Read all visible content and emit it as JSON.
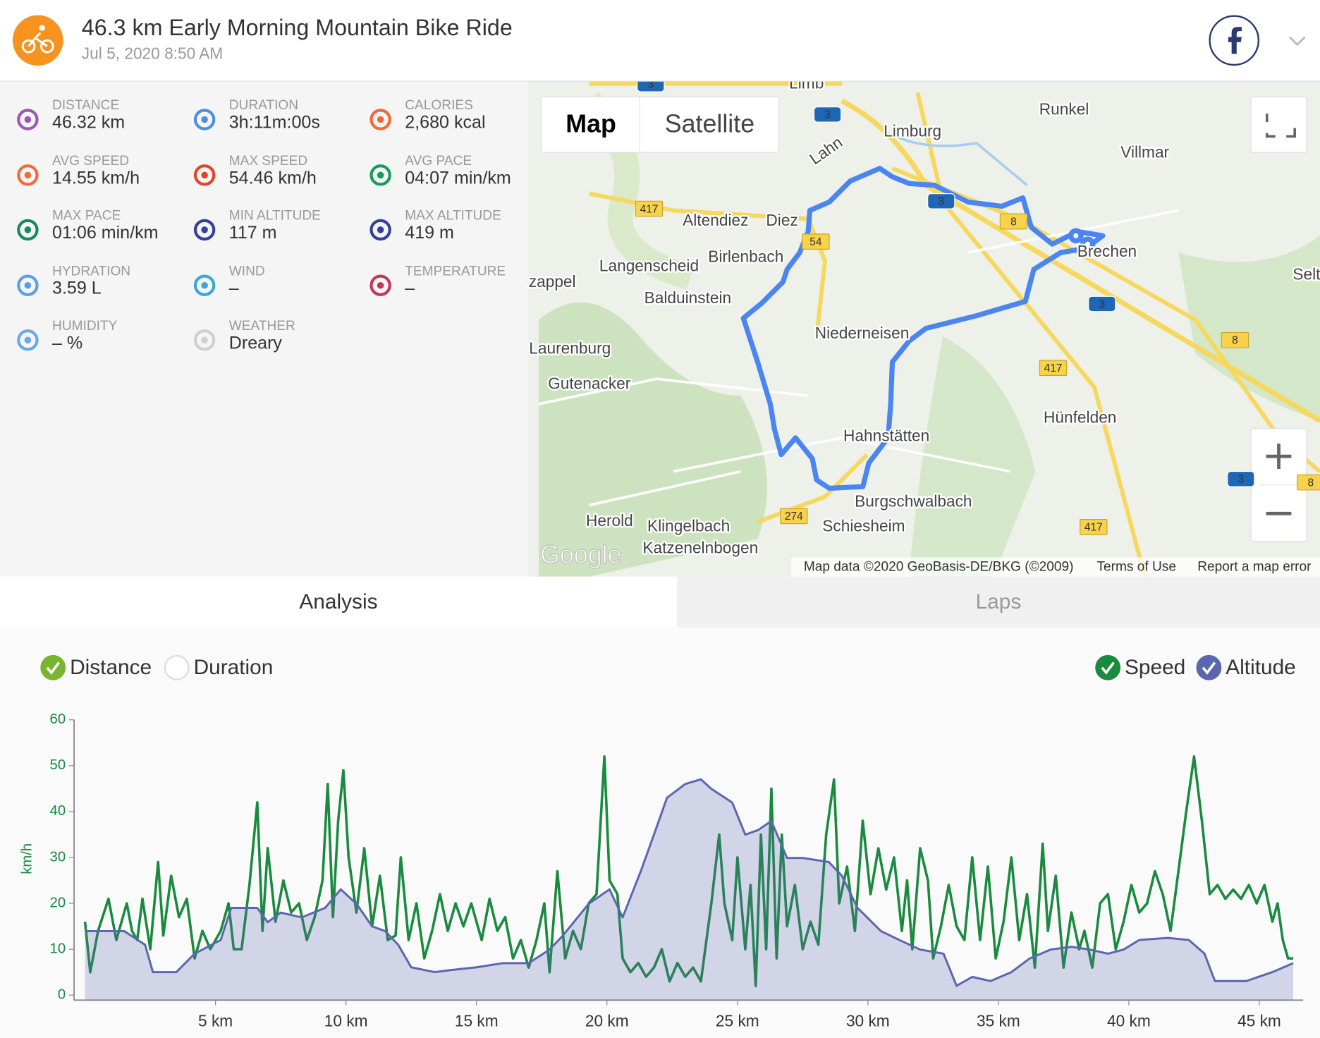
{
  "header": {
    "title": "46.3 km Early Morning Mountain Bike Ride",
    "date": "Jul 5, 2020 8:50 AM"
  },
  "stats": [
    {
      "label": "Distance",
      "value": "46.32 km"
    },
    {
      "label": "Duration",
      "value": "3h:11m:00s"
    },
    {
      "label": "Calories",
      "value": "2,680 kcal"
    },
    {
      "label": "Avg Speed",
      "value": "14.55 km/h"
    },
    {
      "label": "Max Speed",
      "value": "54.46 km/h"
    },
    {
      "label": "Avg Pace",
      "value": "04:07 min/km"
    },
    {
      "label": "Max Pace",
      "value": "01:06 min/km"
    },
    {
      "label": "Min Altitude",
      "value": "117 m"
    },
    {
      "label": "Max Altitude",
      "value": "419 m"
    },
    {
      "label": "Hydration",
      "value": "3.59 L"
    },
    {
      "label": "Wind",
      "value": "–"
    },
    {
      "label": "Temperature",
      "value": "–"
    },
    {
      "label": "Humidity",
      "value": "– %"
    },
    {
      "label": "Weather",
      "value": "Dreary"
    }
  ],
  "map": {
    "buttons": [
      "Map",
      "Satellite"
    ],
    "labels": [
      "Runkel",
      "Limburg",
      "Villmar",
      "Altendiez",
      "Diez",
      "Langenscheid",
      "Birlenbach",
      "Brechen",
      "Selt",
      "zappel",
      "Balduinstein",
      "Niederneisen",
      "Laurenburg",
      "Gutenacker",
      "Hünfelden",
      "Hahnstätten",
      "Burgschwalbach",
      "Herold",
      "Klingelbach",
      "Schiesheim",
      "Katzenelnbogen",
      "Lahn",
      "Limb"
    ],
    "road_labels": [
      "3",
      "3",
      "3",
      "3",
      "3",
      "417",
      "417",
      "417",
      "54",
      "8",
      "8",
      "8",
      "274"
    ],
    "logo": "Google",
    "attribution": [
      "Map data ©2020 GeoBasis-DE/BKG (©2009)",
      "Terms of Use",
      "Report a map error"
    ]
  },
  "tabs": [
    "Analysis",
    "Laps"
  ],
  "x_modes": [
    "Distance",
    "Duration"
  ],
  "chart_data": {
    "type": "line",
    "y_label": "km/h",
    "xlim": [
      -0.42,
      46.68
    ],
    "ylim": [
      -1.1,
      60
    ],
    "y2lim": [
      96,
      506
    ],
    "xticks": [
      {
        "value": 5,
        "label": "5 km"
      },
      {
        "value": 10,
        "label": "10 km"
      },
      {
        "value": 15,
        "label": "15 km"
      },
      {
        "value": 20,
        "label": "20 km"
      },
      {
        "value": 25,
        "label": "25 km"
      },
      {
        "value": 30,
        "label": "30 km"
      },
      {
        "value": 35,
        "label": "35 km"
      },
      {
        "value": 40,
        "label": "40 km"
      },
      {
        "value": 45,
        "label": "45 km"
      }
    ],
    "yticks": [
      0,
      10,
      20,
      30,
      40,
      50,
      60
    ],
    "series": [
      {
        "name": "Speed",
        "color": "#1a8a3f",
        "x": [
          0,
          0.2,
          0.5,
          0.9,
          1.2,
          1.6,
          1.8,
          2.0,
          2.2,
          2.5,
          2.8,
          3.0,
          3.3,
          3.6,
          3.9,
          4.2,
          4.5,
          4.8,
          5.2,
          5.5,
          5.7,
          6.0,
          6.3,
          6.6,
          6.8,
          7.0,
          7.3,
          7.6,
          7.9,
          8.2,
          8.5,
          8.8,
          9.1,
          9.3,
          9.5,
          9.7,
          9.9,
          10.1,
          10.4,
          10.7,
          11.0,
          11.3,
          11.6,
          11.9,
          12.1,
          12.4,
          12.7,
          13.0,
          13.3,
          13.6,
          13.9,
          14.2,
          14.5,
          14.8,
          15.2,
          15.5,
          15.8,
          16.1,
          16.4,
          16.7,
          17.0,
          17.3,
          17.6,
          17.8,
          18.1,
          18.4,
          18.7,
          19.0,
          19.3,
          19.6,
          19.8,
          19.9,
          20.1,
          20.4,
          20.6,
          20.9,
          21.2,
          21.5,
          21.8,
          22.1,
          22.4,
          22.7,
          23.0,
          23.3,
          23.6,
          24.0,
          24.3,
          24.5,
          24.8,
          25.0,
          25.3,
          25.5,
          25.7,
          25.9,
          26.1,
          26.3,
          26.5,
          26.7,
          26.9,
          27.2,
          27.5,
          27.8,
          28.1,
          28.4,
          28.7,
          28.9,
          29.2,
          29.5,
          29.8,
          30.1,
          30.4,
          30.7,
          31.0,
          31.3,
          31.5,
          31.7,
          32.0,
          32.3,
          32.5,
          32.8,
          33.1,
          33.4,
          33.7,
          34.0,
          34.3,
          34.6,
          34.9,
          35.2,
          35.5,
          35.8,
          36.1,
          36.4,
          36.7,
          36.9,
          37.2,
          37.5,
          37.8,
          38.1,
          38.3,
          38.6,
          38.9,
          39.2,
          39.5,
          39.8,
          40.1,
          40.4,
          40.7,
          41.0,
          41.3,
          41.6,
          41.9,
          42.2,
          42.5,
          42.8,
          43.1,
          43.4,
          43.7,
          44.0,
          44.3,
          44.6,
          44.9,
          45.2,
          45.5,
          45.7,
          45.9,
          46.1,
          46.3
        ],
        "values": [
          16,
          5,
          14,
          21,
          12,
          20,
          14,
          12,
          21,
          10,
          29,
          13,
          26,
          17,
          21,
          8,
          14,
          10,
          14,
          20,
          10,
          10,
          24,
          42,
          14,
          32,
          16,
          25,
          18,
          20,
          12,
          17,
          25,
          46,
          17,
          38,
          49,
          30,
          18,
          32,
          15,
          26,
          12,
          13,
          30,
          12,
          20,
          8,
          14,
          22,
          14,
          20,
          15,
          20,
          12,
          21,
          14,
          17,
          8,
          12,
          6,
          12,
          20,
          5,
          27,
          8,
          14,
          10,
          20,
          22,
          42,
          52,
          25,
          22,
          8,
          5,
          7,
          4,
          6,
          10,
          3,
          7,
          4,
          6,
          3,
          20,
          35,
          20,
          12,
          30,
          10,
          24,
          2,
          35,
          10,
          45,
          8,
          35,
          15,
          24,
          10,
          16,
          11,
          35,
          47,
          20,
          28,
          14,
          38,
          22,
          32,
          23,
          30,
          14,
          25,
          10,
          32,
          25,
          8,
          15,
          24,
          15,
          12,
          30,
          12,
          28,
          8,
          16,
          30,
          12,
          22,
          6,
          33,
          14,
          26,
          6,
          18,
          10,
          14,
          6,
          20,
          22,
          10,
          16,
          24,
          18,
          20,
          27,
          22,
          14,
          27,
          40,
          52,
          38,
          22,
          24,
          21,
          23,
          21,
          24,
          20,
          24,
          16,
          20,
          12,
          8,
          8
        ]
      },
      {
        "name": "Altitude",
        "color": "#5a67b0",
        "axis": "y2",
        "area": true,
        "x": [
          0,
          1.5,
          2.3,
          2.6,
          3.5,
          4.2,
          5.2,
          5.6,
          6.6,
          7.0,
          7.5,
          8.3,
          9.2,
          9.8,
          10.4,
          11.0,
          11.5,
          12.0,
          12.5,
          13.4,
          14.0,
          15.0,
          16.0,
          17.0,
          17.8,
          18.3,
          19.3,
          20.1,
          20.6,
          21.3,
          21.8,
          22.3,
          23.0,
          23.6,
          24.0,
          24.8,
          25.3,
          25.8,
          26.3,
          26.9,
          27.5,
          28.5,
          29.0,
          29.6,
          30.5,
          31.2,
          32.0,
          32.9,
          33.4,
          34.0,
          34.7,
          35.5,
          36.2,
          37.0,
          37.8,
          38.5,
          39.2,
          39.8,
          40.4,
          41.5,
          42.3,
          42.9,
          43.3,
          44.5,
          45.5,
          46.3
        ],
        "values": [
          197,
          197,
          177,
          137,
          137,
          164,
          184,
          231,
          231,
          210,
          224,
          217,
          231,
          258,
          237,
          204,
          197,
          177,
          144,
          137,
          140,
          144,
          150,
          150,
          170,
          190,
          237,
          258,
          217,
          285,
          338,
          392,
          412,
          419,
          405,
          385,
          338,
          345,
          358,
          304,
          304,
          298,
          278,
          231,
          197,
          184,
          170,
          164,
          117,
          130,
          124,
          137,
          157,
          170,
          174,
          170,
          164,
          170,
          184,
          187,
          184,
          164,
          124,
          124,
          137,
          150
        ]
      }
    ]
  }
}
